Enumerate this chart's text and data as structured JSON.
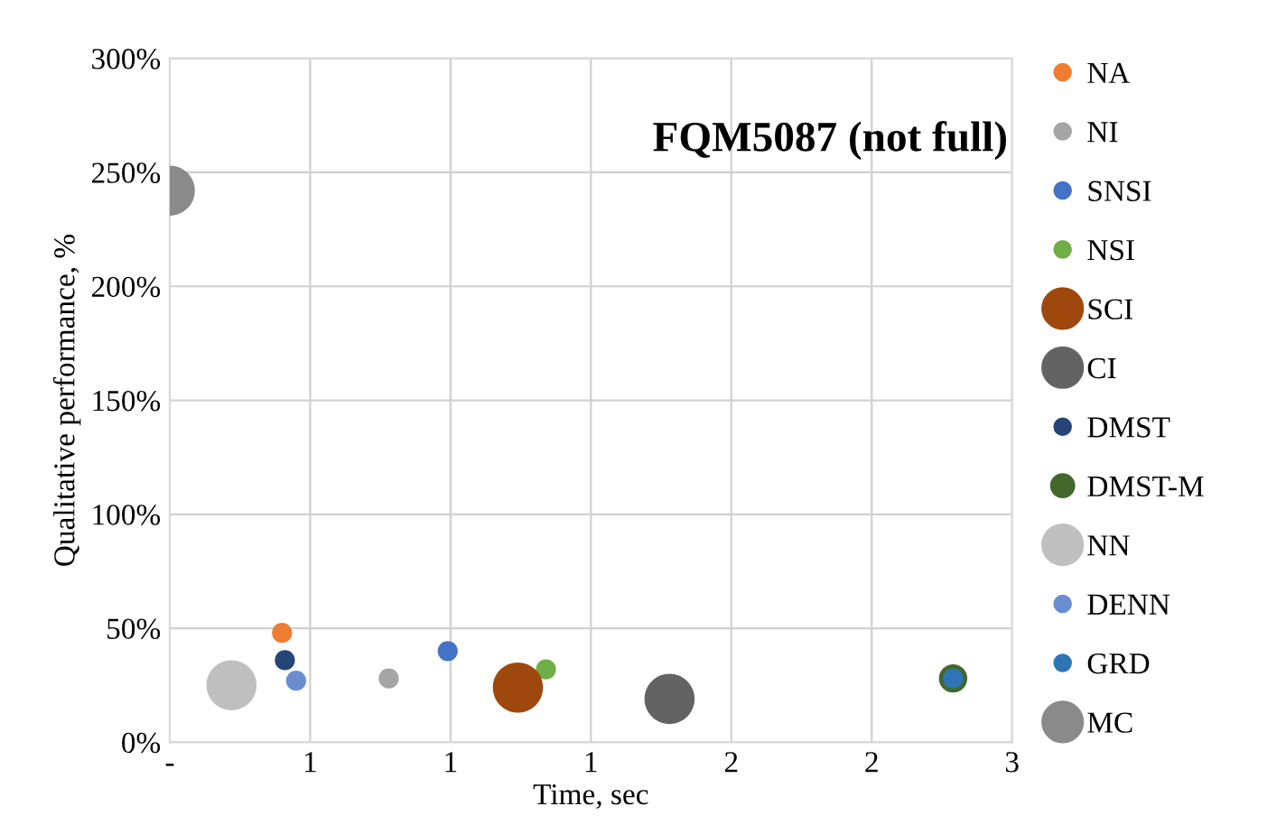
{
  "chart_data": {
    "type": "bubble",
    "title": "FQM5087 (not full)",
    "xlabel": "Time, sec",
    "ylabel": "Qualitative performance, %",
    "xlim": [
      0,
      3
    ],
    "xticks": [
      {
        "value": 0,
        "label": "-"
      },
      {
        "value": 0.5,
        "label": "1"
      },
      {
        "value": 1,
        "label": "1"
      },
      {
        "value": 1.5,
        "label": "1"
      },
      {
        "value": 2,
        "label": "2"
      },
      {
        "value": 2.5,
        "label": "2"
      },
      {
        "value": 3,
        "label": "3"
      }
    ],
    "ylim": [
      0,
      300
    ],
    "yticks": [
      {
        "value": 0,
        "label": "0%"
      },
      {
        "value": 50,
        "label": "50%"
      },
      {
        "value": 100,
        "label": "100%"
      },
      {
        "value": 150,
        "label": "150%"
      },
      {
        "value": 200,
        "label": "200%"
      },
      {
        "value": 250,
        "label": "250%"
      },
      {
        "value": 300,
        "label": "300%"
      }
    ],
    "grid": true,
    "legend": "right",
    "marker": "circle",
    "series": [
      {
        "name": "NA",
        "color": "#ed7d31",
        "x": [
          0.4
        ],
        "values": [
          48
        ],
        "sizes": [
          0.16
        ]
      },
      {
        "name": "NI",
        "color": "#a5a5a5",
        "x": [
          0.78
        ],
        "values": [
          28
        ],
        "sizes": [
          0.16
        ]
      },
      {
        "name": "SNSI",
        "color": "#4472c4",
        "x": [
          0.99
        ],
        "values": [
          40
        ],
        "sizes": [
          0.16
        ]
      },
      {
        "name": "NSI",
        "color": "#70ad47",
        "x": [
          1.34
        ],
        "values": [
          32
        ],
        "sizes": [
          0.16
        ]
      },
      {
        "name": "SCI",
        "color": "#9e480e",
        "x": [
          1.24
        ],
        "values": [
          24
        ],
        "sizes": [
          1
        ]
      },
      {
        "name": "CI",
        "color": "#636363",
        "x": [
          1.78
        ],
        "values": [
          19
        ],
        "sizes": [
          1
        ]
      },
      {
        "name": "DMST",
        "color": "#264478",
        "x": [
          0.41
        ],
        "values": [
          36
        ],
        "sizes": [
          0.16
        ]
      },
      {
        "name": "DMST-M",
        "color": "#43682b",
        "x": [
          2.79
        ],
        "values": [
          28
        ],
        "sizes": [
          0.32
        ]
      },
      {
        "name": "NN",
        "color": "#bfbfbf",
        "x": [
          0.22
        ],
        "values": [
          25
        ],
        "sizes": [
          1
        ]
      },
      {
        "name": "DENN",
        "color": "#698ed0",
        "x": [
          0.45
        ],
        "values": [
          27
        ],
        "sizes": [
          0.16
        ]
      },
      {
        "name": "GRD",
        "color": "#2e75b6",
        "x": [
          2.79
        ],
        "values": [
          28
        ],
        "sizes": [
          0.16
        ]
      },
      {
        "name": "MC",
        "color": "#8a8a8a",
        "x": [
          0
        ],
        "values": [
          242
        ],
        "sizes": [
          1
        ]
      }
    ]
  }
}
